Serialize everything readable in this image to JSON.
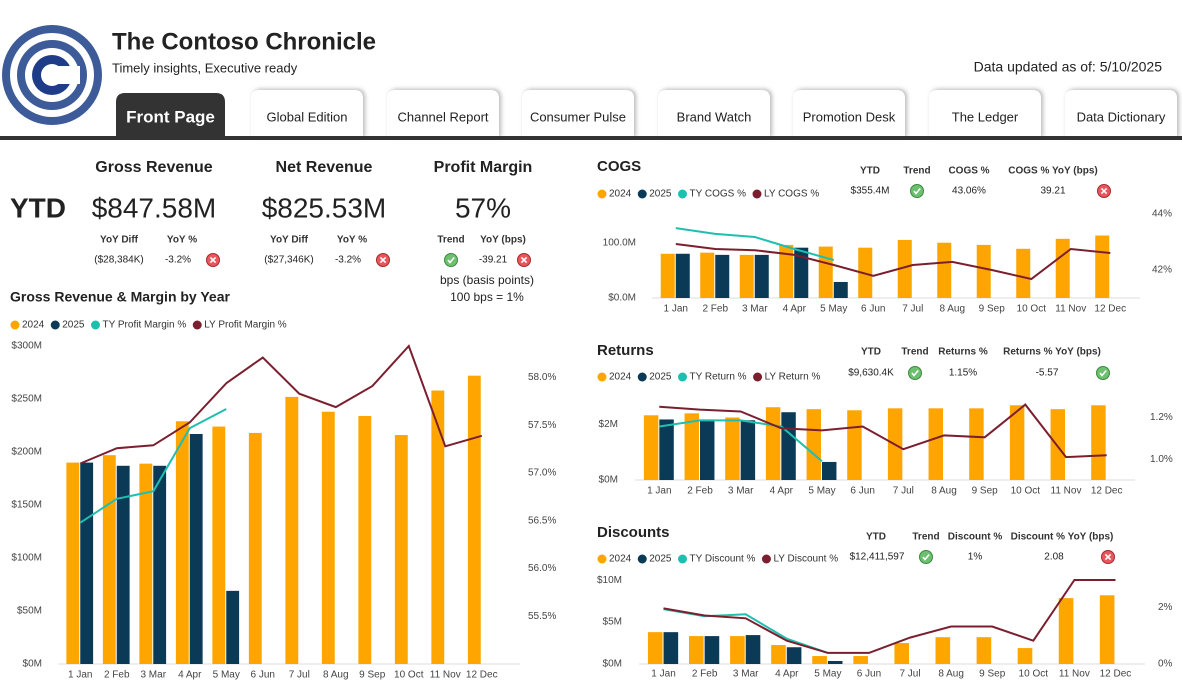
{
  "header": {
    "title": "The Contoso Chronicle",
    "subtitle": "Timely insights, Executive ready",
    "updated": "Data updated as of: 5/10/2025"
  },
  "tabs": [
    "Front Page",
    "Global Edition",
    "Channel Report",
    "Consumer Pulse",
    "Brand Watch",
    "Promotion Desk",
    "The Ledger",
    "Data Dictionary"
  ],
  "ytd_label": "YTD",
  "kpis": [
    {
      "title": "Gross Revenue",
      "value": "$847.58M",
      "headers": [
        "YoY Diff",
        "YoY %"
      ],
      "values": [
        "($28,384K)",
        "-3.2%"
      ]
    },
    {
      "title": "Net Revenue",
      "value": "$825.53M",
      "headers": [
        "YoY Diff",
        "YoY %"
      ],
      "values": [
        "($27,346K)",
        "-3.2%"
      ]
    },
    {
      "title": "Profit Margin",
      "value": "57%",
      "headers": [
        "Trend",
        "YoY (bps)"
      ],
      "values": [
        "-39.21"
      ],
      "notes": [
        "bps (basis points)",
        "100 bps = 1%"
      ]
    }
  ],
  "panels": [
    {
      "headers": [
        "YTD",
        "Trend",
        "COGS %",
        "COGS % YoY (bps)"
      ],
      "values": [
        "$355.4M",
        "43.06%",
        "39.21"
      ]
    },
    {
      "headers": [
        "YTD",
        "Trend",
        "Returns %",
        "Returns % YoY (bps)"
      ],
      "values": [
        "$9,630.4K",
        "1.15%",
        "-5.57"
      ]
    },
    {
      "headers": [
        "YTD",
        "Trend",
        "Discount %",
        "Discount % YoY (bps)"
      ],
      "values": [
        "$12,411,597",
        "1%",
        "2.08"
      ]
    }
  ],
  "chart_data": [
    {
      "type": "combo",
      "title": "Gross Revenue & Margin by Year",
      "categories": [
        "1 Jan",
        "2 Feb",
        "3 Mar",
        "4 Apr",
        "5 May",
        "6 Jun",
        "7 Jul",
        "8 Aug",
        "9 Sep",
        "10 Oct",
        "11 Nov",
        "12 Dec"
      ],
      "ylim": [
        0,
        300
      ],
      "yticks": [
        {
          "value": 0,
          "label": "$0M"
        },
        {
          "value": 50,
          "label": "$50M"
        },
        {
          "value": 100,
          "label": "$100M"
        },
        {
          "value": 150,
          "label": "$150M"
        },
        {
          "value": 200,
          "label": "$200M"
        },
        {
          "value": 250,
          "label": "$250M"
        },
        {
          "value": 300,
          "label": "$300M"
        }
      ],
      "y2lim": [
        55.0,
        58.33
      ],
      "y2ticks": [
        {
          "value": 55.5,
          "label": "55.5%"
        },
        {
          "value": 56,
          "label": "56.0%"
        },
        {
          "value": 56.5,
          "label": "56.5%"
        },
        {
          "value": 57,
          "label": "57.0%"
        },
        {
          "value": 57.5,
          "label": "57.5%"
        },
        {
          "value": 58,
          "label": "58.0%"
        }
      ],
      "series": [
        {
          "name": "2024",
          "color": "#ffa500",
          "kind": "bar",
          "values": [
            190,
            197,
            189,
            229,
            224,
            218,
            252,
            238,
            234,
            216,
            258,
            272
          ]
        },
        {
          "name": "2025",
          "color": "#0b3a57",
          "kind": "bar",
          "values": [
            190,
            187,
            187,
            217,
            69,
            null,
            null,
            null,
            null,
            null,
            null,
            null
          ]
        },
        {
          "name": "TY Profit Margin %",
          "color": "#1fbfb0",
          "kind": "line",
          "axis": "y2",
          "values": [
            56.48,
            56.73,
            56.81,
            57.47,
            57.67,
            null,
            null,
            null,
            null,
            null,
            null,
            null
          ]
        },
        {
          "name": "LY Profit Margin %",
          "color": "#7b1f2f",
          "kind": "line",
          "axis": "y2",
          "values": [
            57.1,
            57.26,
            57.29,
            57.53,
            57.94,
            58.21,
            57.83,
            57.69,
            57.91,
            58.33,
            57.28,
            57.39
          ]
        }
      ]
    },
    {
      "type": "combo",
      "title": "COGS",
      "categories": [
        "1 Jan",
        "2 Feb",
        "3 Mar",
        "4 Apr",
        "5 May",
        "6 Jun",
        "7 Jul",
        "8 Aug",
        "9 Sep",
        "10 Oct",
        "11 Nov",
        "12 Dec"
      ],
      "ylim": [
        0,
        170
      ],
      "yticks": [
        {
          "value": 0,
          "label": "$0.0M"
        },
        {
          "value": 100,
          "label": "100.0M"
        }
      ],
      "y2lim": [
        41.0,
        44.36
      ],
      "y2ticks": [
        {
          "value": 42,
          "label": "42%"
        },
        {
          "value": 44,
          "label": "44%"
        }
      ],
      "series": [
        {
          "name": "2024",
          "color": "#ffa500",
          "kind": "bar",
          "values": [
            80,
            82,
            78,
            96,
            93,
            91,
            105,
            100,
            96,
            89,
            107,
            113
          ]
        },
        {
          "name": "2025",
          "color": "#0b3a57",
          "kind": "bar",
          "values": [
            80,
            78,
            78,
            91,
            29,
            null,
            null,
            null,
            null,
            null,
            null,
            null
          ]
        },
        {
          "name": "TY COGS %",
          "color": "#1fbfb0",
          "kind": "line",
          "axis": "y2",
          "values": [
            43.5,
            43.29,
            43.18,
            42.75,
            42.36,
            null,
            null,
            null,
            null,
            null,
            null,
            null
          ]
        },
        {
          "name": "LY COGS %",
          "color": "#7b1f2f",
          "kind": "line",
          "axis": "y2",
          "values": [
            42.93,
            42.75,
            42.71,
            42.54,
            42.18,
            41.79,
            42.18,
            42.29,
            42.0,
            41.68,
            42.75,
            42.61
          ]
        }
      ]
    },
    {
      "type": "combo",
      "title": "Returns",
      "categories": [
        "1 Jan",
        "2 Feb",
        "3 Mar",
        "4 Apr",
        "5 May",
        "6 Jun",
        "7 Jul",
        "8 Aug",
        "9 Sep",
        "10 Oct",
        "11 Nov",
        "12 Dec"
      ],
      "ylim": [
        0,
        3.6
      ],
      "yticks": [
        {
          "value": 0,
          "label": "$0M"
        },
        {
          "value": 2,
          "label": "$2M"
        }
      ],
      "y2lim": [
        0.9,
        1.38
      ],
      "y2ticks": [
        {
          "value": 1,
          "label": "1.0%"
        },
        {
          "value": 1.2,
          "label": "1.2%"
        }
      ],
      "series": [
        {
          "name": "2024",
          "color": "#ffa500",
          "kind": "bar",
          "values": [
            2.33,
            2.4,
            2.25,
            2.62,
            2.55,
            2.51,
            2.58,
            2.58,
            2.58,
            2.69,
            2.55,
            2.69
          ]
        },
        {
          "name": "2025",
          "color": "#0b3a57",
          "kind": "bar",
          "values": [
            2.18,
            2.18,
            2.15,
            2.44,
            0.65,
            null,
            null,
            null,
            null,
            null,
            null,
            null
          ]
        },
        {
          "name": "TY Return %",
          "color": "#1fbfb0",
          "kind": "line",
          "axis": "y2",
          "values": [
            1.157,
            1.186,
            1.186,
            1.157,
            0.99,
            null,
            null,
            null,
            null,
            null,
            null,
            null
          ]
        },
        {
          "name": "LY Return %",
          "color": "#7b1f2f",
          "kind": "line",
          "axis": "y2",
          "values": [
            1.252,
            1.238,
            1.229,
            1.148,
            1.138,
            1.157,
            1.048,
            1.114,
            1.105,
            1.262,
            1.01,
            1.019
          ]
        }
      ]
    },
    {
      "type": "combo",
      "title": "Discounts",
      "categories": [
        "1 Jan",
        "2 Feb",
        "3 Mar",
        "4 Apr",
        "5 May",
        "6 Jun",
        "7 Jul",
        "8 Aug",
        "9 Sep",
        "10 Oct",
        "11 Nov",
        "12 Dec"
      ],
      "ylim": [
        0,
        10.5
      ],
      "yticks": [
        {
          "value": 0,
          "label": "$0M"
        },
        {
          "value": 5,
          "label": "$5M"
        },
        {
          "value": 10,
          "label": "$10M"
        }
      ],
      "y2lim": [
        0,
        3.1
      ],
      "y2ticks": [
        {
          "value": 0,
          "label": "0%"
        },
        {
          "value": 2,
          "label": "2%"
        }
      ],
      "series": [
        {
          "name": "2024",
          "color": "#ffa500",
          "kind": "bar",
          "values": [
            3.8,
            3.33,
            3.33,
            2.26,
            0.95,
            0.95,
            2.5,
            3.2,
            3.2,
            1.9,
            7.86,
            8.2
          ]
        },
        {
          "name": "2025",
          "color": "#0b3a57",
          "kind": "bar",
          "values": [
            3.8,
            3.33,
            3.45,
            2.0,
            0.36,
            null,
            null,
            null,
            null,
            null,
            null,
            null
          ]
        },
        {
          "name": "TY Discount %",
          "color": "#1fbfb0",
          "kind": "line",
          "axis": "y2",
          "values": [
            1.93,
            1.68,
            1.75,
            0.89,
            0.39,
            null,
            null,
            null,
            null,
            null,
            null,
            null
          ]
        },
        {
          "name": "LY Discount %",
          "color": "#7b1f2f",
          "kind": "line",
          "axis": "y2",
          "values": [
            1.96,
            1.71,
            1.61,
            0.82,
            0.39,
            0.39,
            0.93,
            1.32,
            1.32,
            0.82,
            2.96,
            2.96
          ]
        }
      ]
    }
  ]
}
